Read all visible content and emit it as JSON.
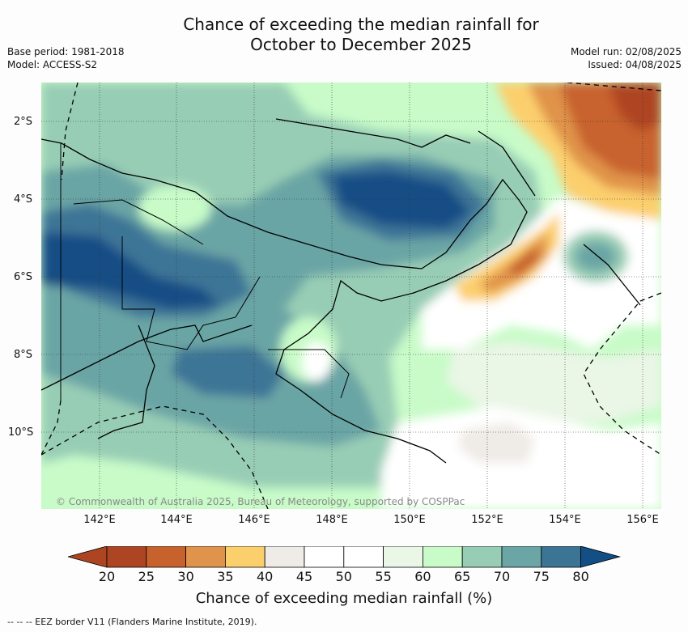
{
  "title_line1": "Chance of exceeding the median rainfall for",
  "title_line2": "October to December 2025",
  "base_period": "Base period: 1981-2018",
  "model": "Model: ACCESS-S2",
  "model_run": "Model run: 02/08/2025",
  "issued": "Issued: 04/08/2025",
  "lat_labels": [
    "2°S",
    "4°S",
    "6°S",
    "8°S",
    "10°S"
  ],
  "lon_labels": [
    "142°E",
    "144°E",
    "146°E",
    "148°E",
    "150°E",
    "152°E",
    "154°E",
    "156°E"
  ],
  "copyright": "© Commonwealth of Australia 2025, Bureau of Meteorology, supported by COSPPac",
  "colorbar": {
    "ticks": [
      "20",
      "25",
      "30",
      "35",
      "40",
      "45",
      "50",
      "55",
      "60",
      "65",
      "70",
      "75",
      "80"
    ],
    "label": "Chance of exceeding median rainfall (%)",
    "colors": [
      "#ae4522",
      "#c8622d",
      "#e0934a",
      "#fccf6d",
      "#efebe6",
      "#ffffff",
      "#ffffff",
      "#eaf6e6",
      "#c8fbc8",
      "#98cdb5",
      "#6ba5a5",
      "#3c7496",
      "#134e85"
    ]
  },
  "footnote": "-- -- -- EEZ border V11 (Flanders Marine Institute, 2019)."
}
